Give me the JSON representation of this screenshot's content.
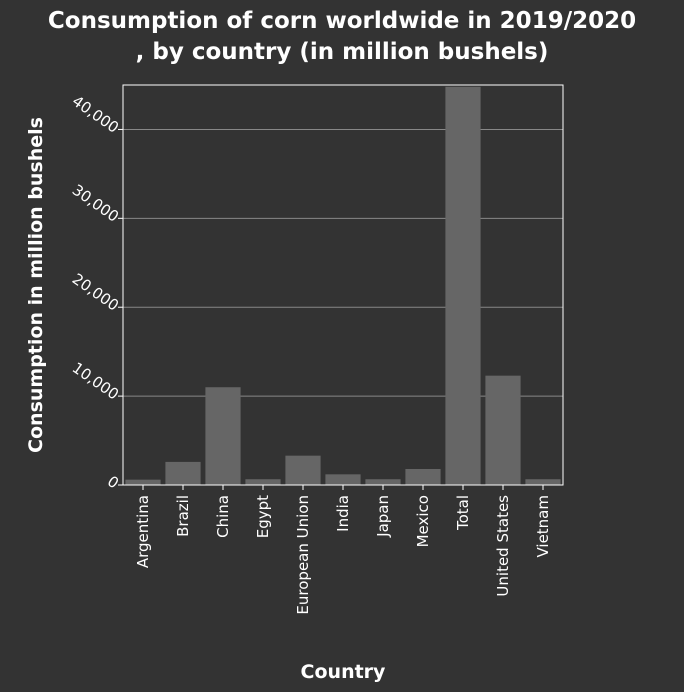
{
  "chart_data": {
    "type": "bar",
    "title": "Consumption of corn worldwide in 2019/2020\n, by country (in million bushels)",
    "xlabel": "Country",
    "ylabel": "Consumption in million bushels",
    "categories": [
      "Argentina",
      "Brazil",
      "China",
      "Egypt",
      "European Union",
      "India",
      "Japan",
      "Mexico",
      "Total",
      "United States",
      "Vietnam"
    ],
    "values": [
      600,
      2600,
      11000,
      650,
      3300,
      1200,
      650,
      1800,
      44800,
      12300,
      650
    ],
    "yticks": [
      0,
      10000,
      20000,
      30000,
      40000
    ],
    "ytick_labels": [
      "0",
      "10,000",
      "20,000",
      "30,000",
      "40,000"
    ],
    "ylim": [
      0,
      45000
    ],
    "grid": true,
    "colors": {
      "background": "#333333",
      "bar": "#666666",
      "grid": "#888888",
      "axis": "#ffffff",
      "text": "#ffffff"
    }
  }
}
